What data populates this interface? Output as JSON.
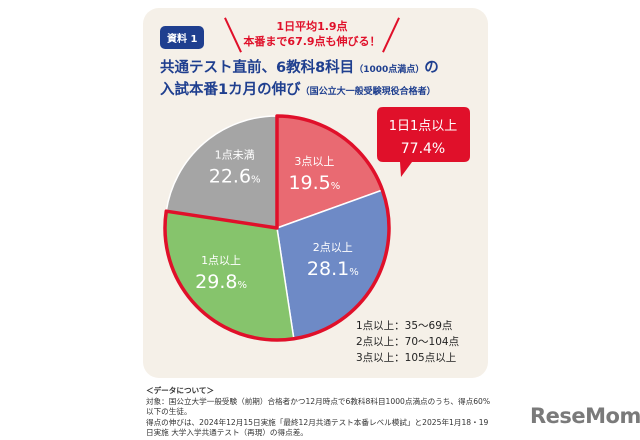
{
  "badge": "資料 1",
  "headline": {
    "line1": "1日平均1.9点",
    "line2": "本番まで67.9点も伸びる！"
  },
  "title": {
    "line1": "共通テスト直前、6教科8科目",
    "line1_note": "（1000点満点）",
    "line1_end": "の",
    "line2": "入試本番1カ月の伸び",
    "line2_note": "（国公立大一般受験現役合格者）"
  },
  "chart_data": {
    "type": "pie",
    "start": "12 o'clock, clockwise",
    "slices": [
      {
        "label": "3点以上",
        "value": 19.5,
        "color": "#e96a72"
      },
      {
        "label": "2点以上",
        "value": 28.1,
        "color": "#6e8ac6"
      },
      {
        "label": "1点以上",
        "value": 29.8,
        "color": "#86c46c"
      },
      {
        "label": "1点未満",
        "value": 22.6,
        "color": "#a5a5a5"
      }
    ],
    "unit": "%",
    "highlight": {
      "label": "1日1点以上",
      "value": "77.4%",
      "color": "#e0102a"
    }
  },
  "legend": [
    "1点以上：35〜69点",
    "2点以上：70〜104点",
    "3点以上：105点以上"
  ],
  "notes": {
    "heading": "＜データについて＞",
    "lines": [
      "対象：国公立大学一般受験（前期）合格者かつ12月時点で6教科8科目1000点満点のうち、得点60%以下の生徒。",
      "得点の伸びは、2024年12月15日実施「最終12月共通テスト本番レベル模試」と2025年1月18・19日実施 大学入学共通テスト（再現）の得点差。"
    ]
  },
  "logo": "ReseMom"
}
